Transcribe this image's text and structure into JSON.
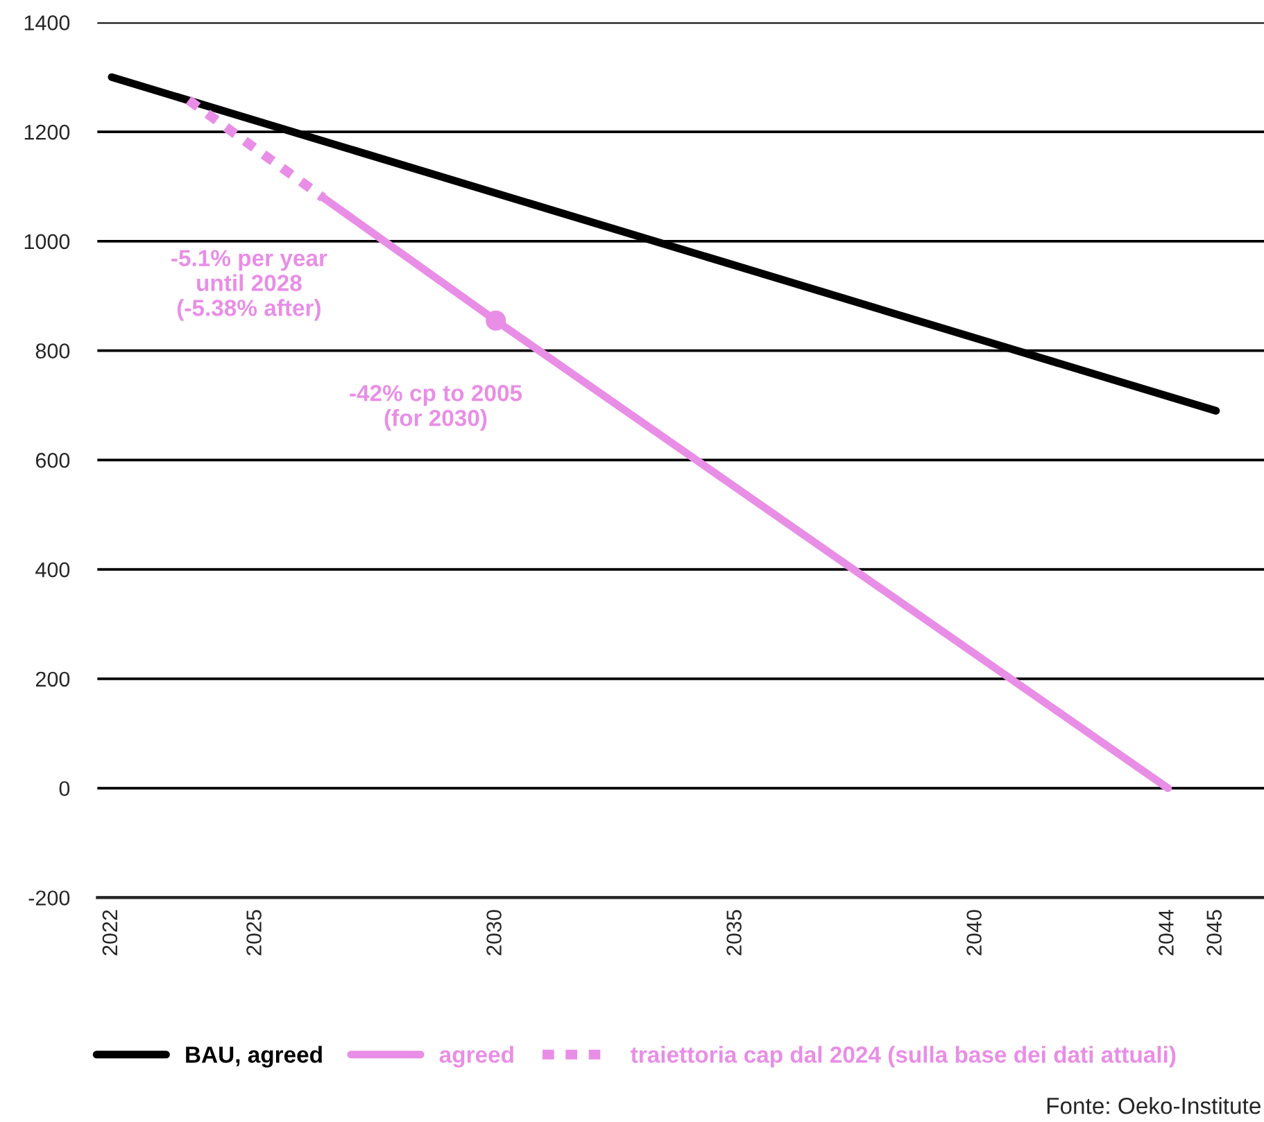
{
  "chart_data": {
    "type": "line",
    "series": [
      {
        "name": "BAU, agreed",
        "color": "#000000",
        "x": [
          2022,
          2045
        ],
        "values": [
          1300,
          690
        ],
        "line_style": "solid"
      },
      {
        "name": "agreed",
        "color": "#e88ee6",
        "x": [
          2026.4,
          2030,
          2044
        ],
        "values": [
          1080,
          855,
          0
        ],
        "line_style": "solid"
      },
      {
        "name": "traiettoria cap dal 2024 (sulla base dei dati attuali)",
        "color": "#e88ee6",
        "x": [
          2023.6,
          2026.4
        ],
        "values": [
          1258,
          1080
        ],
        "line_style": "dotted"
      },
      {
        "type": "scatter",
        "color": "#e88ee6",
        "x": [
          2030
        ],
        "values": [
          855
        ],
        "marker": "circle"
      }
    ],
    "xlim": [
      2021.7,
      2046
    ],
    "xticks": [
      2022,
      2025,
      2030,
      2035,
      2040,
      2044,
      2045
    ],
    "ylim": [
      -200,
      1400
    ],
    "yticks": [
      -200,
      0,
      200,
      400,
      600,
      800,
      1000,
      1200,
      1400
    ],
    "grid": "y",
    "legend": "bottom",
    "annotations": [
      "-5.1% per year\nuntil 2028\n(-5.38% after)",
      "-42% cp to 2005\n(for 2030)",
      "Fonte: Oeko-Institute"
    ]
  }
}
